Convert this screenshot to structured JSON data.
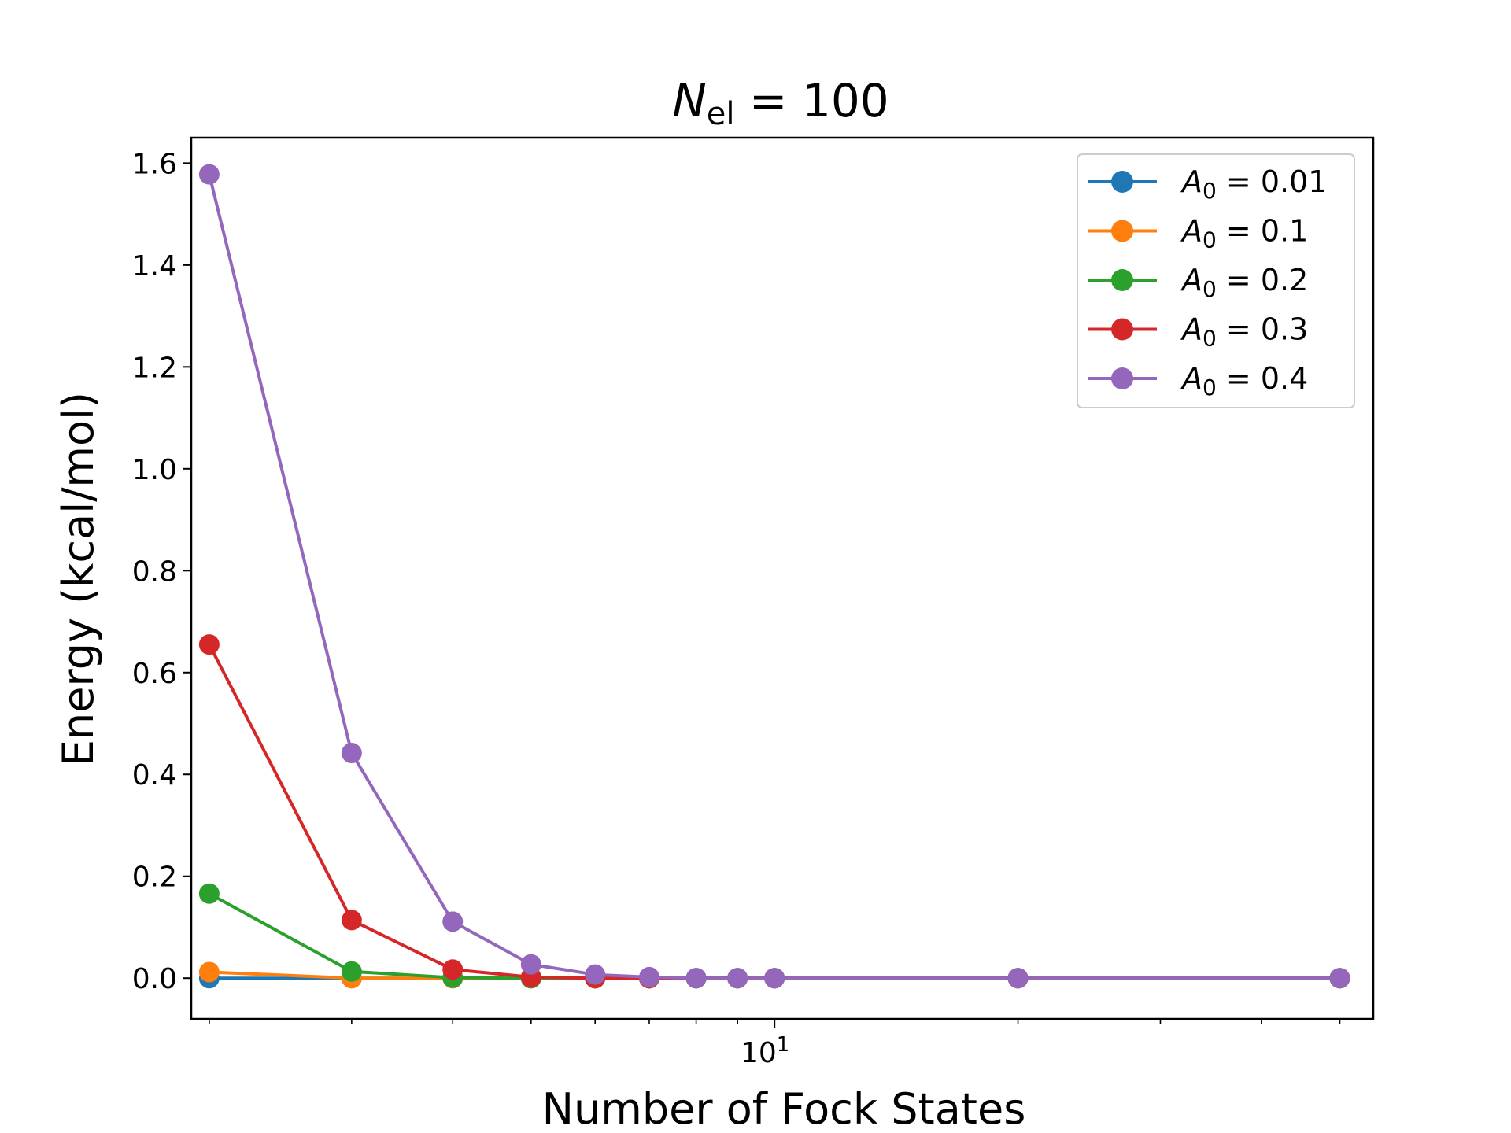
{
  "chart_data": {
    "type": "line",
    "title": {
      "main": "N",
      "sub": "el",
      "rest": " = 100"
    },
    "xlabel": "Number of Fock States",
    "ylabel": "Energy (kcal/mol)",
    "xscale": "log",
    "xlim": [
      1.9,
      55
    ],
    "ylim": [
      -0.08,
      1.65
    ],
    "yticks": [
      "0.0",
      "0.2",
      "0.4",
      "0.6",
      "0.8",
      "1.0",
      "1.2",
      "1.4",
      "1.6"
    ],
    "xtick_major": {
      "base": "10",
      "exp": "1"
    },
    "legend_loc": "upper right",
    "x": [
      2,
      3,
      4,
      5,
      6,
      7,
      8,
      9,
      10,
      20,
      50
    ],
    "series": [
      {
        "name": "0.01",
        "color": "#1f77b4",
        "values": [
          0.0,
          0.0,
          0.0,
          0.0,
          0.0,
          0.0,
          0.0,
          0.0,
          0.0,
          0.0,
          0.0
        ]
      },
      {
        "name": "0.1",
        "color": "#ff7f0e",
        "values": [
          0.012,
          0.0,
          0.0,
          0.0,
          0.0,
          0.0,
          0.0,
          0.0,
          0.0,
          0.0,
          0.0
        ]
      },
      {
        "name": "0.2",
        "color": "#2ca02c",
        "values": [
          0.166,
          0.013,
          0.001,
          0.0,
          0.0,
          0.0,
          0.0,
          0.0,
          0.0,
          0.0,
          0.0
        ]
      },
      {
        "name": "0.3",
        "color": "#d62728",
        "values": [
          0.655,
          0.114,
          0.017,
          0.002,
          0.0,
          0.0,
          0.0,
          0.0,
          0.0,
          0.0,
          0.0
        ]
      },
      {
        "name": "0.4",
        "color": "#9467bd",
        "values": [
          1.578,
          0.442,
          0.111,
          0.027,
          0.007,
          0.002,
          0.0,
          0.0,
          0.0,
          0.0,
          0.0
        ]
      }
    ],
    "legend_symbol": "A",
    "legend_sub": "0"
  }
}
